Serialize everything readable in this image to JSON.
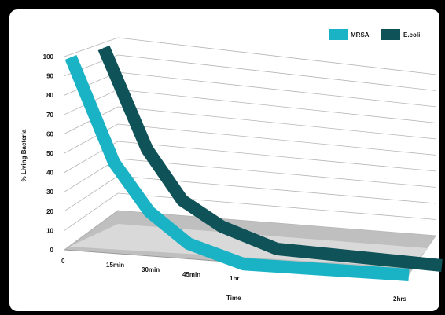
{
  "chart_data": {
    "type": "line",
    "title": "",
    "xlabel": "Time",
    "ylabel": "% Living Bacteria",
    "categories": [
      "0",
      "15min",
      "30min",
      "45min",
      "1hr",
      "2hrs"
    ],
    "ylim": [
      0,
      100
    ],
    "y_ticks": [
      "0",
      "10",
      "20",
      "30",
      "40",
      "50",
      "60",
      "70",
      "80",
      "90",
      "100"
    ],
    "grid": true,
    "legend_position": "top-right",
    "series": [
      {
        "name": "MRSA",
        "color": "#1ab3c6",
        "values": [
          100,
          48,
          25,
          11,
          3,
          0
        ]
      },
      {
        "name": "E.coli",
        "color": "#0f5359",
        "values": [
          100,
          50,
          26,
          15,
          6,
          0
        ]
      }
    ]
  }
}
